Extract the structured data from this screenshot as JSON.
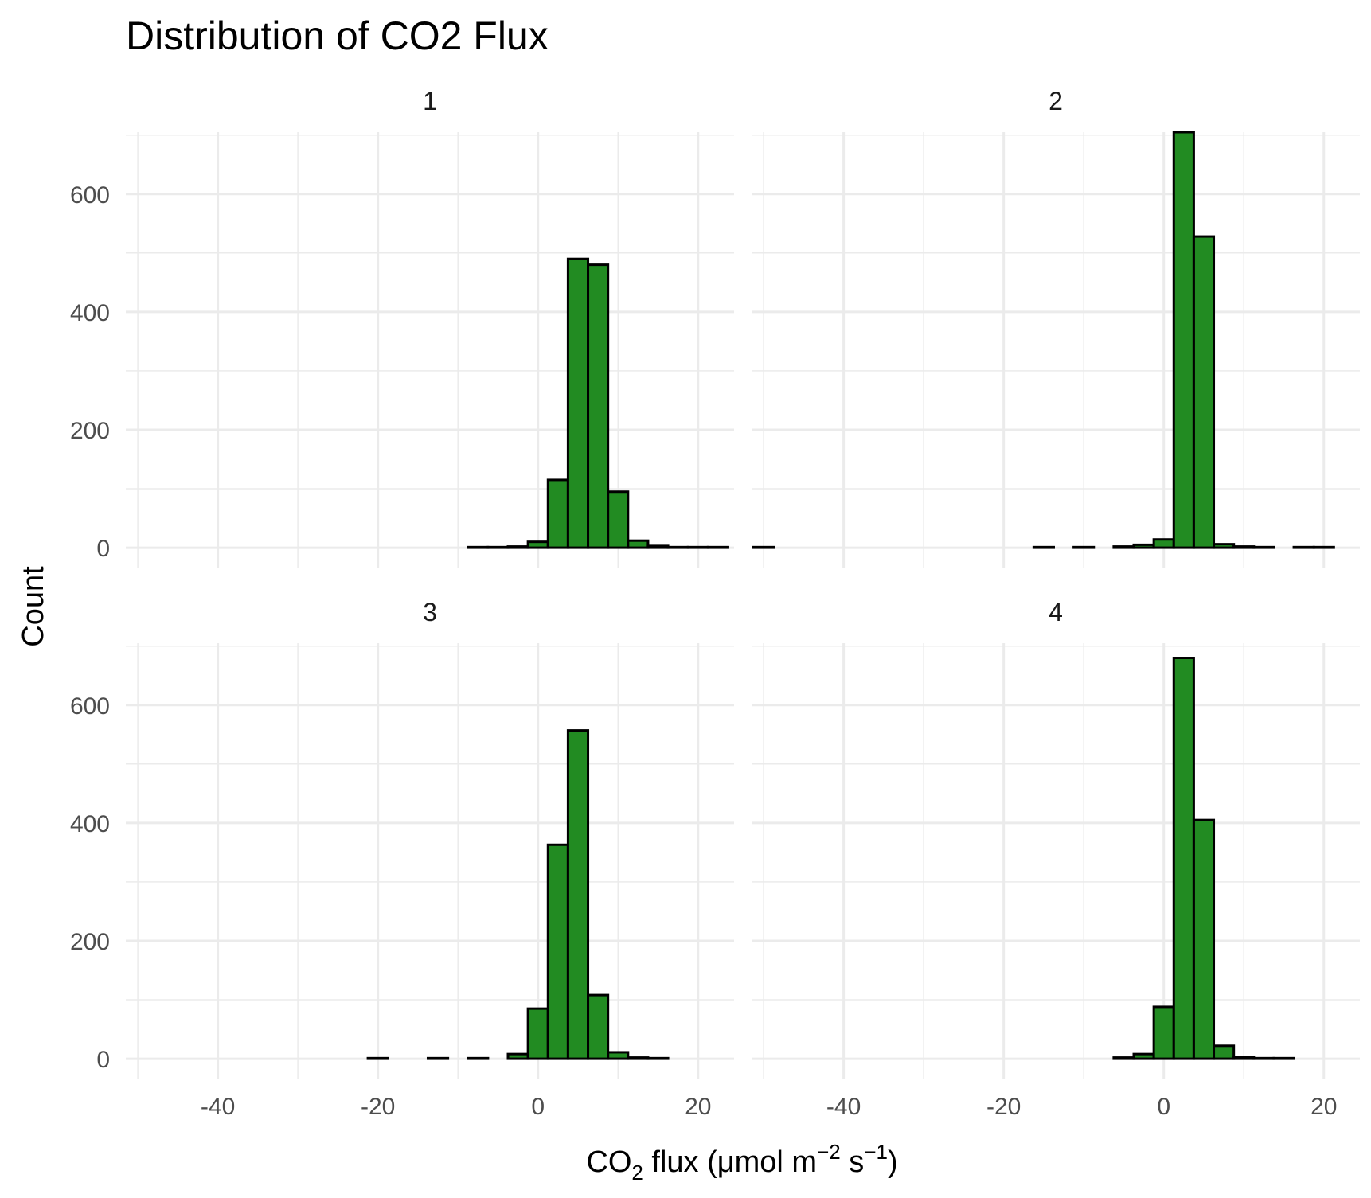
{
  "chart_data": {
    "type": "bar",
    "title": "Distribution of CO2 Flux",
    "xlabel": "CO2 flux (μmol m-2 s-1)",
    "xlabel_parts": {
      "pre": "CO",
      "sub": "2",
      "mid1": " flux (μmol m",
      "sup1": "−2",
      "mid2": " s",
      "sup2": "−1",
      "post": ")"
    },
    "ylabel": "Count",
    "xlim": [
      -51.5,
      24.5
    ],
    "ylim": [
      -35,
      705
    ],
    "x_ticks": [
      -40,
      -20,
      0,
      20
    ],
    "x_tick_labels": [
      "-40",
      "-20",
      "0",
      "20"
    ],
    "y_ticks": [
      0,
      200,
      400,
      600
    ],
    "y_tick_labels": [
      "0",
      "200",
      "400",
      "600"
    ],
    "bin_width": 2.5,
    "grid": true,
    "colors": {
      "fill": "#228B22",
      "outline": "#000000",
      "grid": "#EBEBEB"
    },
    "facets": [
      {
        "label": "1",
        "bins": [
          {
            "x": -7.5,
            "count": 1
          },
          {
            "x": -5,
            "count": 1
          },
          {
            "x": -2.5,
            "count": 2
          },
          {
            "x": 0,
            "count": 10
          },
          {
            "x": 2.5,
            "count": 115
          },
          {
            "x": 5,
            "count": 490
          },
          {
            "x": 7.5,
            "count": 480
          },
          {
            "x": 10,
            "count": 95
          },
          {
            "x": 12.5,
            "count": 12
          },
          {
            "x": 15,
            "count": 3
          },
          {
            "x": 17.5,
            "count": 1
          },
          {
            "x": 20,
            "count": 1
          },
          {
            "x": 22.5,
            "count": 1
          }
        ]
      },
      {
        "label": "2",
        "bins": [
          {
            "x": -50,
            "count": 1
          },
          {
            "x": -15,
            "count": 1
          },
          {
            "x": -10,
            "count": 1
          },
          {
            "x": -5,
            "count": 2
          },
          {
            "x": -2.5,
            "count": 5
          },
          {
            "x": 0,
            "count": 14
          },
          {
            "x": 2.5,
            "count": 705
          },
          {
            "x": 5,
            "count": 528
          },
          {
            "x": 7.5,
            "count": 6
          },
          {
            "x": 10,
            "count": 2
          },
          {
            "x": 12.5,
            "count": 1
          },
          {
            "x": 17.5,
            "count": 1
          },
          {
            "x": 20,
            "count": 1
          }
        ]
      },
      {
        "label": "3",
        "bins": [
          {
            "x": -20,
            "count": 1
          },
          {
            "x": -12.5,
            "count": 1
          },
          {
            "x": -7.5,
            "count": 1
          },
          {
            "x": -2.5,
            "count": 8
          },
          {
            "x": 0,
            "count": 85
          },
          {
            "x": 2.5,
            "count": 363
          },
          {
            "x": 5,
            "count": 557
          },
          {
            "x": 7.5,
            "count": 108
          },
          {
            "x": 10,
            "count": 11
          },
          {
            "x": 12.5,
            "count": 2
          },
          {
            "x": 15,
            "count": 1
          }
        ]
      },
      {
        "label": "4",
        "bins": [
          {
            "x": -5,
            "count": 2
          },
          {
            "x": -2.5,
            "count": 8
          },
          {
            "x": 0,
            "count": 88
          },
          {
            "x": 2.5,
            "count": 680
          },
          {
            "x": 5,
            "count": 405
          },
          {
            "x": 7.5,
            "count": 22
          },
          {
            "x": 10,
            "count": 3
          },
          {
            "x": 12.5,
            "count": 1
          },
          {
            "x": 15,
            "count": 1
          }
        ]
      }
    ]
  }
}
